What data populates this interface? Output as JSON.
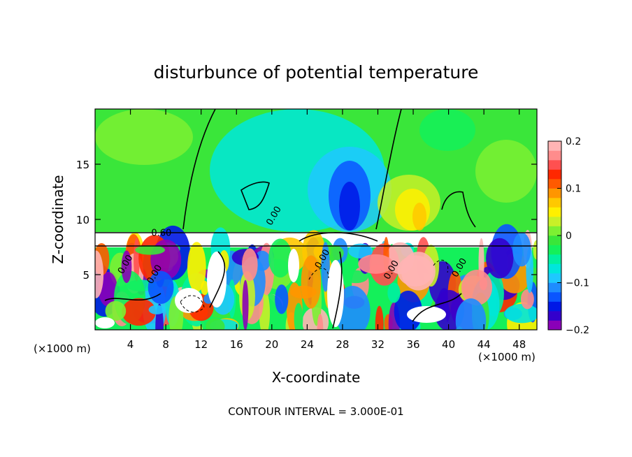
{
  "chart_data": {
    "type": "heatmap",
    "title": "disturbunce of potential temperature",
    "xlabel": "X-coordinate",
    "ylabel": "Z-coordinate",
    "x_unit_left": "(×1000 m)",
    "x_unit_right": "(×1000 m)",
    "xlim": [
      0,
      50
    ],
    "ylim": [
      0,
      20
    ],
    "x_ticks": [
      4,
      8,
      12,
      16,
      20,
      24,
      28,
      32,
      36,
      40,
      44,
      48
    ],
    "y_ticks": [
      5,
      10,
      15
    ],
    "contour_labels": [
      {
        "text": "0.60",
        "x": 7.5,
        "z": 8.5
      },
      {
        "text": "0.00",
        "x": 20.5,
        "z": 10.2
      },
      {
        "text": "0.00",
        "x": 3.7,
        "z": 5.8
      },
      {
        "text": "0.00",
        "x": 7.0,
        "z": 4.9
      },
      {
        "text": "0.00",
        "x": 26.0,
        "z": 6.3
      },
      {
        "text": "0.00",
        "x": 33.8,
        "z": 5.3
      },
      {
        "text": "0.00",
        "x": 41.5,
        "z": 5.5
      }
    ],
    "colorbar": {
      "min": -0.2,
      "max": 0.2,
      "tick_labels": [
        "0.2",
        "0.1",
        "0",
        "−0.1",
        "−0.2"
      ],
      "colors": [
        "#8a00b8",
        "#3300cc",
        "#0018e6",
        "#0a55ff",
        "#1e8cff",
        "#1ec8ff",
        "#00e6dc",
        "#00f0a0",
        "#14f05a",
        "#3ae63a",
        "#7df032",
        "#c8f028",
        "#fff000",
        "#ffc800",
        "#ff9600",
        "#ff5a00",
        "#ff2800",
        "#ff5050",
        "#ff8c8c",
        "#ffb4b4"
      ]
    },
    "footer": "CONTOUR INTERVAL = 3.000E-01"
  }
}
